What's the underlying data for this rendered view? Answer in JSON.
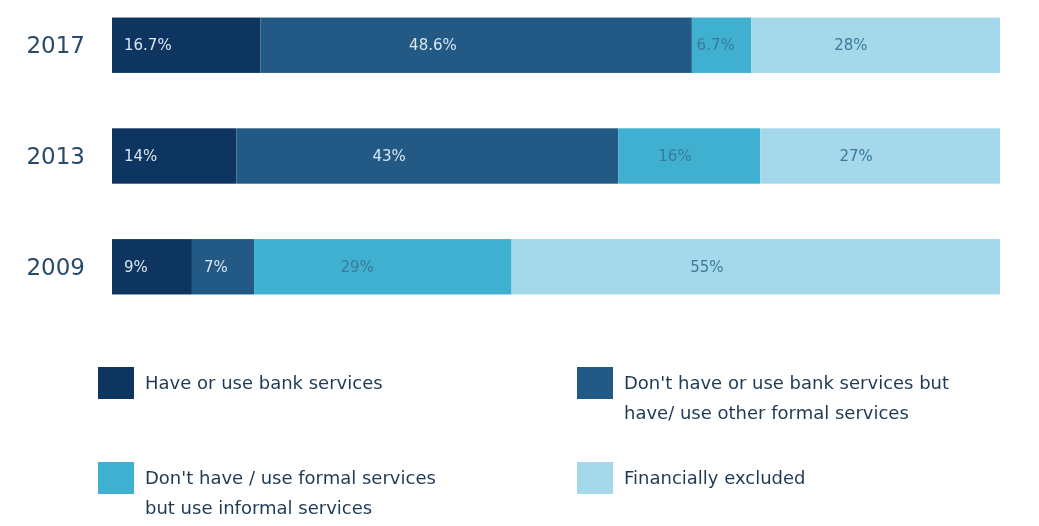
{
  "chart_data": {
    "type": "bar",
    "orientation": "horizontal",
    "stacked": true,
    "legend": "bottom",
    "categories": [
      "2017",
      "2013",
      "2009"
    ],
    "series": [
      {
        "name": "Have or use bank services",
        "color": "#0d3560",
        "values": [
          16.7,
          14,
          9
        ],
        "value_labels": [
          "16.7%",
          "14%",
          "9%"
        ]
      },
      {
        "name": "Don't have or use bank services but have/ use other formal services",
        "color": "#235a85",
        "values": [
          48.6,
          43,
          7
        ],
        "value_labels": [
          "48.6%",
          "43%",
          "7%"
        ]
      },
      {
        "name": "Don't have / use formal services but use informal services",
        "color": "#3fb0d0",
        "values": [
          6.7,
          16,
          29
        ],
        "value_labels": [
          "6.7%",
          "16%",
          "29%"
        ]
      },
      {
        "name": "Financially excluded",
        "color": "#a5d8ea",
        "values": [
          28,
          27,
          55
        ],
        "value_labels": [
          "28%",
          "27%",
          "55%"
        ]
      }
    ]
  }
}
